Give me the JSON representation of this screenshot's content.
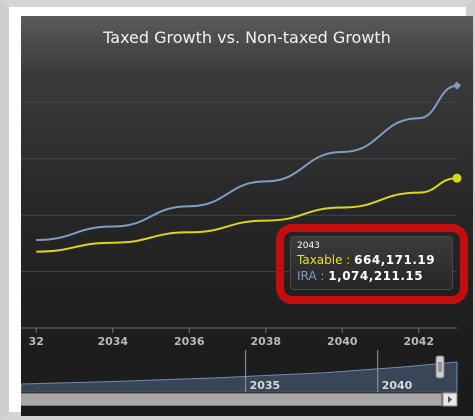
{
  "chart": {
    "title": "Taxed Growth vs. Non-taxed Growth",
    "x_ticks": [
      "32",
      "2034",
      "2036",
      "2038",
      "2040",
      "2042"
    ],
    "navigator_ticks": [
      "2035",
      "2040"
    ]
  },
  "tooltip": {
    "date": "2043",
    "taxable_label": "Taxable :",
    "taxable_value": "664,171.19",
    "ira_label": "IRA :",
    "ira_value": "1,074,211.15"
  },
  "colors": {
    "taxable": "#dcd51f",
    "ira": "#7d9dc5",
    "highlight": "#c40d0d",
    "background": "#262626"
  },
  "chart_data": {
    "type": "line",
    "title": "Taxed Growth vs. Non-taxed Growth",
    "x": [
      2032,
      2034,
      2036,
      2038,
      2040,
      2042,
      2043
    ],
    "series": [
      {
        "name": "Taxable",
        "values": [
          338000,
          378000,
          424000,
          476000,
          534000,
          600000,
          664171.19
        ]
      },
      {
        "name": "IRA",
        "values": [
          390000,
          450000,
          540000,
          650000,
          780000,
          930000,
          1074211.15
        ]
      }
    ],
    "xlim": [
      2031.6,
      2043
    ],
    "ylim": [
      0,
      1250000
    ],
    "grid": true
  }
}
